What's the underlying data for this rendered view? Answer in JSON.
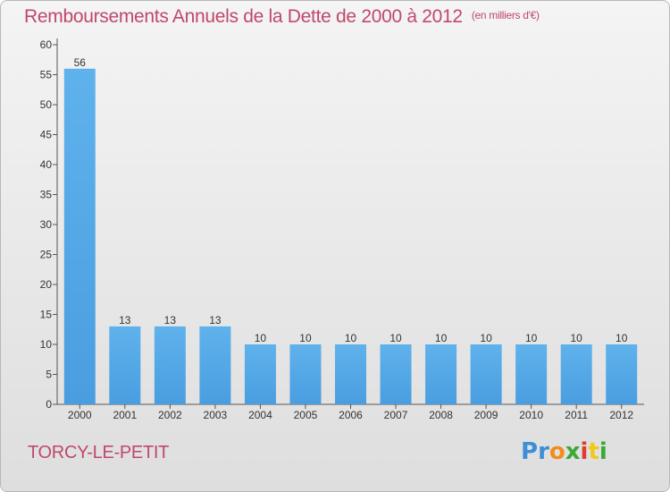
{
  "chart_data": {
    "type": "bar",
    "title": "Remboursements Annuels de la Dette de 2000 à 2012",
    "unit": "(en milliers d'€)",
    "categories": [
      "2000",
      "2001",
      "2002",
      "2003",
      "2004",
      "2005",
      "2006",
      "2007",
      "2008",
      "2009",
      "2010",
      "2011",
      "2012"
    ],
    "values": [
      56,
      13,
      13,
      13,
      10,
      10,
      10,
      10,
      10,
      10,
      10,
      10,
      10
    ],
    "ylim": [
      0,
      60
    ],
    "yticks": [
      0,
      5,
      10,
      15,
      20,
      25,
      30,
      35,
      40,
      45,
      50,
      55,
      60
    ],
    "grid": false,
    "bar_color": "#4a9ee0"
  },
  "footer": {
    "town": "TORCY-LE-PETIT"
  },
  "logo": {
    "letters": [
      "P",
      "r",
      "o",
      "x",
      "i",
      "t",
      "i"
    ],
    "colors": [
      "#3d8fd6",
      "#3d8fd6",
      "#f28c1e",
      "#3aa935",
      "#e03c31",
      "#f2c71e",
      "#3aa935"
    ]
  }
}
